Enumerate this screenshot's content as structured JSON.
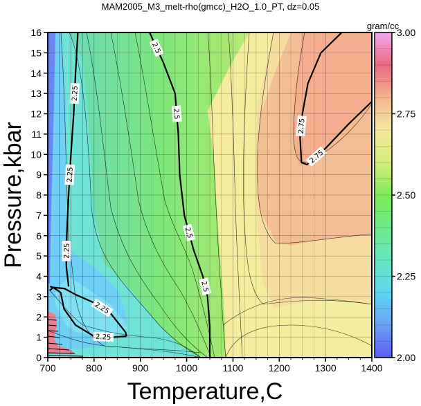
{
  "chart_data": {
    "type": "heatmap",
    "title": "MAM2005_M3_melt-rho(gmcc)_H2O_1.0_PT, dz=0.05",
    "xlabel": "Temperature,C",
    "ylabel": "Pressure,kbar",
    "xlim": [
      700,
      1400
    ],
    "ylim": [
      0,
      16
    ],
    "x_ticks": [
      700,
      800,
      900,
      1000,
      1100,
      1200,
      1300,
      1400
    ],
    "y_ticks": [
      0,
      1,
      2,
      3,
      4,
      5,
      6,
      7,
      8,
      9,
      10,
      11,
      12,
      13,
      14,
      15,
      16
    ],
    "grid": true,
    "colorbar": {
      "unit_label": "gram/cc",
      "range": [
        2.0,
        3.0
      ],
      "tick_values": [
        2.0,
        2.25,
        2.5,
        2.75,
        3.0
      ],
      "tick_labels": [
        "2.00",
        "2.25",
        "2.50",
        "2.75",
        "3.00"
      ],
      "colors": [
        {
          "value": 2.0,
          "color": "#5b5bf5"
        },
        {
          "value": 2.1,
          "color": "#6aa3f5"
        },
        {
          "value": 2.2,
          "color": "#5fd6f0"
        },
        {
          "value": 2.3,
          "color": "#66e6c2"
        },
        {
          "value": 2.4,
          "color": "#6fea8a"
        },
        {
          "value": 2.5,
          "color": "#7fea5a"
        },
        {
          "value": 2.6,
          "color": "#d4ec7a"
        },
        {
          "value": 2.7,
          "color": "#f6e7a0"
        },
        {
          "value": 2.8,
          "color": "#f3b48c"
        },
        {
          "value": 2.9,
          "color": "#e86a80"
        },
        {
          "value": 3.0,
          "color": "#f4a8f0"
        }
      ]
    },
    "labeled_contours": [
      {
        "level": 2.25,
        "label": "2.25",
        "points": [
          [
            870,
            1.05
          ],
          [
            840,
            1.0
          ],
          [
            800,
            1.05
          ],
          [
            760,
            1.6
          ],
          [
            735,
            2.4
          ],
          [
            728,
            3.2
          ],
          [
            712,
            3.45
          ],
          [
            704,
            3.3
          ]
        ]
      },
      {
        "level": 2.25,
        "label": "2.25",
        "points": [
          [
            705,
            3.5
          ],
          [
            712,
            3.45
          ],
          [
            736,
            3.4
          ],
          [
            760,
            3.1
          ],
          [
            800,
            2.7
          ],
          [
            835,
            2.2
          ],
          [
            868,
            1.25
          ],
          [
            870,
            1.05
          ]
        ]
      },
      {
        "level": 2.25,
        "label": "2.25",
        "points": [
          [
            745,
            3.5
          ],
          [
            740,
            4.5
          ],
          [
            741,
            6
          ],
          [
            745,
            8
          ],
          [
            750,
            10
          ],
          [
            756,
            12
          ],
          [
            760,
            14
          ],
          [
            765,
            16
          ]
        ]
      },
      {
        "level": 2.5,
        "label": "2.5",
        "points": [
          [
            1050,
            0
          ],
          [
            1050,
            1.5
          ],
          [
            1045,
            3
          ],
          [
            1035,
            4
          ],
          [
            1015,
            5.3
          ],
          [
            995,
            7
          ],
          [
            985,
            9
          ],
          [
            982,
            11
          ],
          [
            975,
            13
          ],
          [
            950,
            14.5
          ],
          [
            920,
            16
          ]
        ]
      },
      {
        "level": 2.75,
        "label": "2.75",
        "points": [
          [
            1335,
            16
          ],
          [
            1290,
            15
          ],
          [
            1262,
            13.5
          ],
          [
            1250,
            12
          ],
          [
            1245,
            10.8
          ],
          [
            1248,
            9.6
          ],
          [
            1260,
            9.5
          ],
          [
            1300,
            10.3
          ],
          [
            1350,
            11.5
          ],
          [
            1400,
            12.6
          ]
        ]
      }
    ]
  }
}
